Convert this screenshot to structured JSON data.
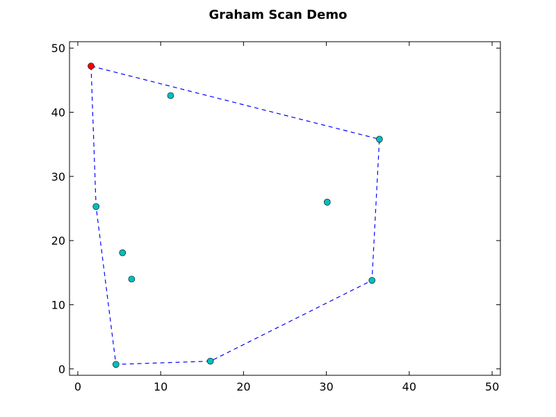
{
  "chart_data": {
    "type": "scatter",
    "title": "Graham Scan Demo",
    "xlabel": "",
    "ylabel": "",
    "xlim": [
      -1,
      51
    ],
    "ylim": [
      -1,
      51
    ],
    "xticks": [
      0,
      10,
      20,
      30,
      40,
      50
    ],
    "yticks": [
      0,
      10,
      20,
      30,
      40,
      50
    ],
    "grid": false,
    "points": [
      {
        "x": 1.6,
        "y": 47.2,
        "color": "#ff0000"
      },
      {
        "x": 11.2,
        "y": 42.6,
        "color": "#00bfbf"
      },
      {
        "x": 36.4,
        "y": 35.8,
        "color": "#00bfbf"
      },
      {
        "x": 30.1,
        "y": 26.0,
        "color": "#00bfbf"
      },
      {
        "x": 2.2,
        "y": 25.3,
        "color": "#00bfbf"
      },
      {
        "x": 5.4,
        "y": 18.1,
        "color": "#00bfbf"
      },
      {
        "x": 6.5,
        "y": 14.0,
        "color": "#00bfbf"
      },
      {
        "x": 35.5,
        "y": 13.8,
        "color": "#00bfbf"
      },
      {
        "x": 16.0,
        "y": 1.2,
        "color": "#00bfbf"
      },
      {
        "x": 4.6,
        "y": 0.7,
        "color": "#00bfbf"
      }
    ],
    "hull": {
      "color": "#0000ff",
      "style": "dashed",
      "path": [
        {
          "x": 1.6,
          "y": 47.2
        },
        {
          "x": 2.2,
          "y": 25.3
        },
        {
          "x": 4.6,
          "y": 0.7
        },
        {
          "x": 16.0,
          "y": 1.2
        },
        {
          "x": 35.5,
          "y": 13.8
        },
        {
          "x": 36.4,
          "y": 35.8
        },
        {
          "x": 1.6,
          "y": 47.2
        }
      ]
    }
  }
}
